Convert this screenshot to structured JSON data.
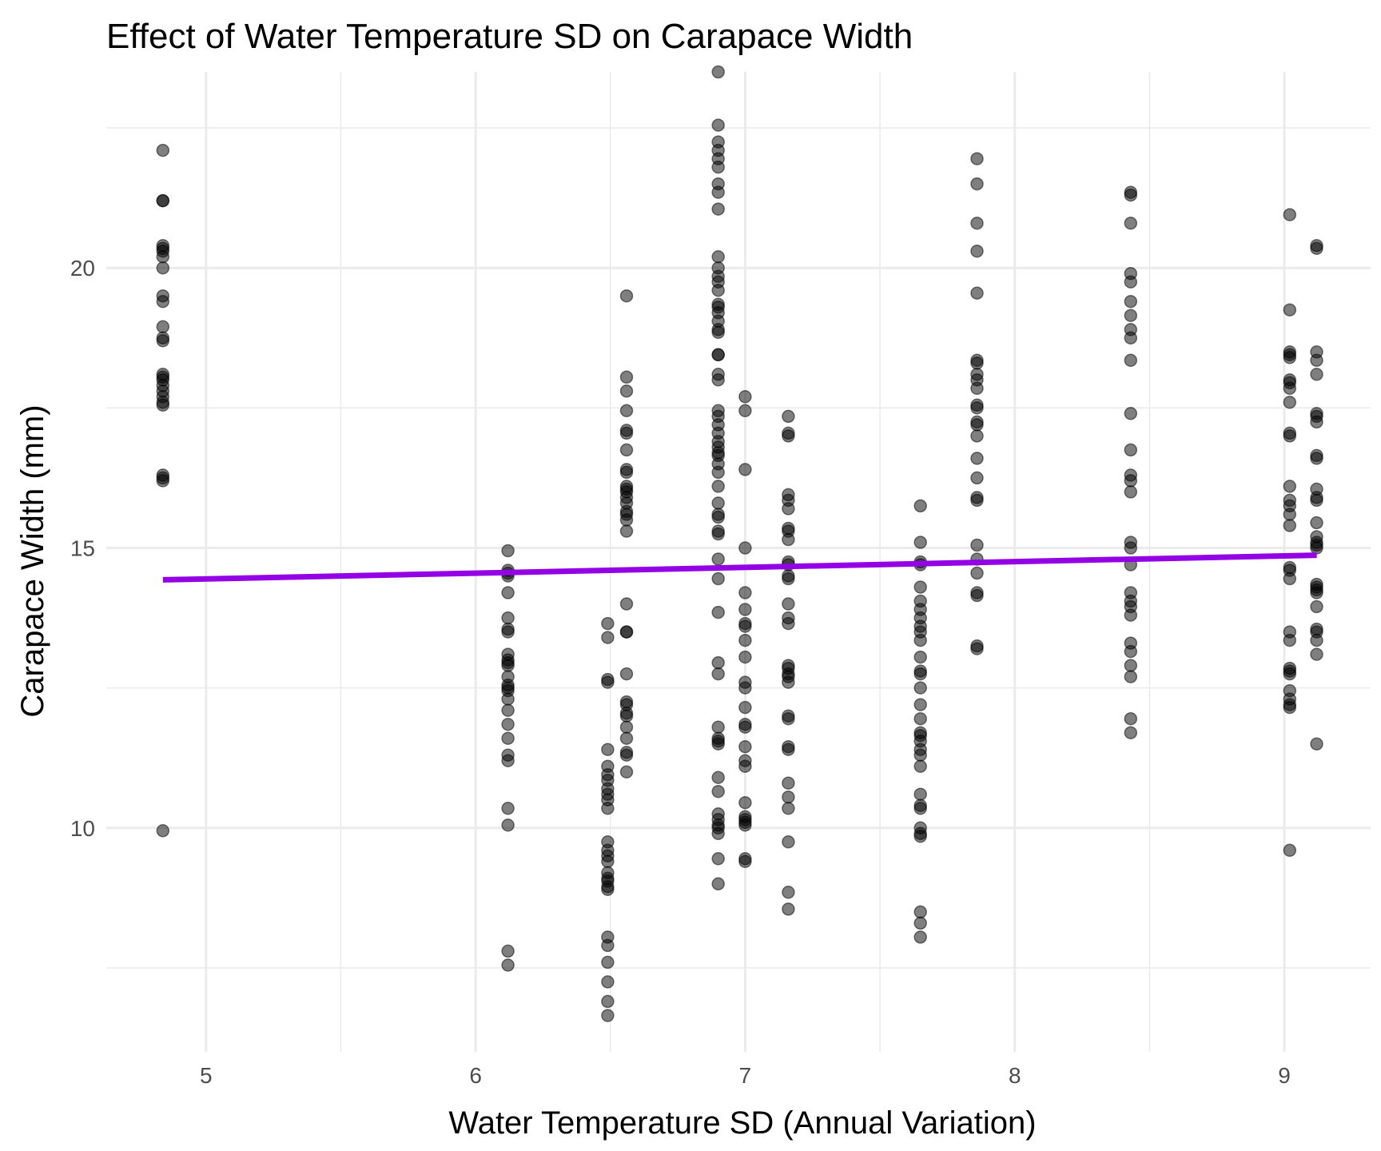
{
  "chart_data": {
    "type": "scatter",
    "title": "Effect of Water Temperature SD on Carapace Width",
    "xlabel": "Water Temperature SD (Annual Variation)",
    "ylabel": "Carapace Width (mm)",
    "xlim": [
      4.63,
      9.32
    ],
    "ylim": [
      6.0,
      23.5
    ],
    "x_ticks": [
      5,
      6,
      7,
      8,
      9
    ],
    "y_ticks": [
      10,
      15,
      20
    ],
    "grid": true,
    "point_color": "#000000",
    "point_opacity": 0.5,
    "trend_line": {
      "color": "#9400e6",
      "x": [
        4.84,
        9.12
      ],
      "y": [
        14.43,
        14.87
      ]
    },
    "groups": [
      {
        "x": 4.84,
        "y": [
          22.1,
          21.2,
          21.2,
          20.4,
          20.35,
          20.3,
          20.2,
          20.0,
          19.5,
          19.4,
          18.95,
          18.75,
          18.7,
          18.1,
          18.05,
          18.0,
          17.9,
          17.8,
          17.7,
          17.6,
          17.55,
          16.3,
          16.25,
          16.2,
          9.95
        ]
      },
      {
        "x": 6.12,
        "y": [
          14.95,
          14.6,
          14.55,
          14.5,
          14.2,
          13.75,
          13.55,
          13.5,
          13.1,
          13.0,
          12.95,
          12.9,
          12.7,
          12.55,
          12.5,
          12.45,
          12.3,
          12.1,
          11.85,
          11.6,
          11.3,
          11.2,
          10.35,
          10.05,
          7.8,
          7.55
        ]
      },
      {
        "x": 6.49,
        "y": [
          13.65,
          13.4,
          12.65,
          12.6,
          11.4,
          11.1,
          10.95,
          10.85,
          10.7,
          10.6,
          10.5,
          10.35,
          9.75,
          9.6,
          9.5,
          9.4,
          9.2,
          9.1,
          9.05,
          8.95,
          8.9,
          8.05,
          7.9,
          7.6,
          7.25,
          6.9,
          6.65
        ]
      },
      {
        "x": 6.56,
        "y": [
          19.5,
          18.05,
          17.8,
          17.45,
          17.1,
          17.05,
          16.75,
          16.4,
          16.35,
          16.1,
          16.05,
          16.0,
          15.9,
          15.8,
          15.65,
          15.6,
          15.5,
          15.3,
          14.0,
          13.5,
          13.5,
          12.75,
          12.25,
          12.2,
          12.05,
          12.0,
          11.8,
          11.6,
          11.35,
          11.3,
          11.0
        ]
      },
      {
        "x": 6.9,
        "y": [
          23.5,
          22.55,
          22.25,
          22.1,
          21.95,
          21.8,
          21.5,
          21.35,
          21.05,
          20.2,
          20.0,
          19.85,
          19.75,
          19.6,
          19.35,
          19.3,
          19.2,
          19.05,
          18.9,
          18.85,
          18.45,
          18.45,
          18.1,
          18.0,
          17.45,
          17.35,
          17.2,
          17.05,
          16.9,
          16.8,
          16.7,
          16.65,
          16.5,
          16.35,
          16.1,
          15.8,
          15.6,
          15.55,
          15.3,
          15.25,
          14.8,
          14.45,
          13.85,
          12.95,
          12.75,
          11.8,
          11.6,
          11.55,
          11.5,
          10.9,
          10.65,
          10.25,
          10.15,
          10.05,
          10.0,
          9.9,
          9.45,
          9.0
        ]
      },
      {
        "x": 7.0,
        "y": [
          17.7,
          17.45,
          16.4,
          15.0,
          14.2,
          13.9,
          13.65,
          13.6,
          13.35,
          13.05,
          12.6,
          12.5,
          12.15,
          11.85,
          11.8,
          11.45,
          11.2,
          11.1,
          10.45,
          10.2,
          10.15,
          10.1,
          10.05,
          9.45,
          9.4
        ]
      },
      {
        "x": 7.16,
        "y": [
          17.35,
          17.05,
          17.0,
          15.95,
          15.85,
          15.7,
          15.35,
          15.3,
          15.15,
          14.75,
          14.7,
          14.5,
          14.45,
          14.0,
          13.75,
          13.65,
          12.9,
          12.85,
          12.75,
          12.7,
          12.6,
          12.0,
          11.95,
          11.45,
          11.4,
          10.8,
          10.55,
          10.35,
          9.75,
          8.85,
          8.55
        ]
      },
      {
        "x": 7.65,
        "y": [
          15.75,
          15.1,
          14.75,
          14.7,
          14.3,
          14.05,
          13.9,
          13.75,
          13.6,
          13.5,
          13.35,
          13.05,
          12.8,
          12.75,
          12.5,
          12.2,
          11.95,
          11.7,
          11.65,
          11.55,
          11.4,
          11.3,
          11.1,
          10.6,
          10.4,
          10.35,
          10.0,
          9.9,
          9.85,
          8.5,
          8.3,
          8.05
        ]
      },
      {
        "x": 7.86,
        "y": [
          21.95,
          21.5,
          20.8,
          20.3,
          19.55,
          18.35,
          18.3,
          18.1,
          18.0,
          17.85,
          17.55,
          17.5,
          17.25,
          17.2,
          17.0,
          16.6,
          16.25,
          15.9,
          15.85,
          15.05,
          14.8,
          14.55,
          14.2,
          14.15,
          13.25,
          13.2
        ]
      },
      {
        "x": 8.43,
        "y": [
          21.35,
          21.3,
          20.8,
          19.9,
          19.75,
          19.4,
          19.15,
          18.9,
          18.75,
          18.35,
          17.4,
          16.75,
          16.3,
          16.2,
          16.0,
          15.1,
          15.0,
          14.7,
          14.2,
          14.05,
          13.95,
          13.8,
          13.3,
          13.15,
          12.9,
          12.7,
          11.95,
          11.7
        ]
      },
      {
        "x": 9.02,
        "y": [
          20.95,
          19.25,
          18.5,
          18.45,
          18.4,
          18.0,
          17.95,
          17.85,
          17.6,
          17.05,
          17.0,
          16.1,
          15.85,
          15.75,
          15.6,
          15.4,
          14.65,
          14.6,
          14.45,
          13.5,
          13.35,
          12.85,
          12.8,
          12.75,
          12.45,
          12.3,
          12.2,
          12.15,
          9.6
        ]
      },
      {
        "x": 9.12,
        "y": [
          20.4,
          20.35,
          18.5,
          18.35,
          18.1,
          17.4,
          17.35,
          17.25,
          16.65,
          16.6,
          16.05,
          15.9,
          15.85,
          15.45,
          15.2,
          15.1,
          15.05,
          15.0,
          14.35,
          14.3,
          14.25,
          14.2,
          13.95,
          13.55,
          13.5,
          13.35,
          13.1,
          11.5
        ]
      }
    ]
  }
}
